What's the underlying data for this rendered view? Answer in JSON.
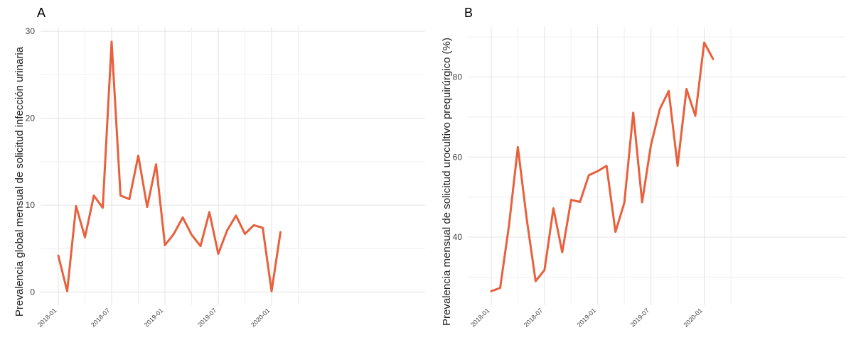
{
  "line_color": "#e8603c",
  "chart_data": [
    {
      "panel_label": "A",
      "type": "line",
      "ylabel": "Prevalencia global mensual de solicitud infección urinaria",
      "x": [
        "2018-01",
        "2018-02",
        "2018-03",
        "2018-04",
        "2018-05",
        "2018-06",
        "2018-07",
        "2018-08",
        "2018-09",
        "2018-10",
        "2018-11",
        "2018-12",
        "2019-01",
        "2019-02",
        "2019-03",
        "2019-04",
        "2019-05",
        "2019-06",
        "2019-07",
        "2019-08",
        "2019-09",
        "2019-10",
        "2019-11",
        "2019-12",
        "2020-01",
        "2020-02"
      ],
      "x_tick_labels": [
        "2018-01",
        "2018-07",
        "2019-01",
        "2019-07",
        "2020-01"
      ],
      "y": [
        4.2,
        0.1,
        9.9,
        6.3,
        11.1,
        9.7,
        28.8,
        11.1,
        10.7,
        15.7,
        9.8,
        14.7,
        5.4,
        6.7,
        8.6,
        6.6,
        5.3,
        9.2,
        4.4,
        7.1,
        8.8,
        6.7,
        7.7,
        7.4,
        0.1,
        6.9
      ],
      "y_ticks": [
        0,
        10,
        20,
        30
      ],
      "ylim": [
        -1.5,
        30.5
      ],
      "grid": true
    },
    {
      "panel_label": "B",
      "type": "line",
      "ylabel": "Prevalencia mensual de solicitud urocultivo prequirúrgico (%)",
      "x": [
        "2018-01",
        "2018-02",
        "2018-03",
        "2018-04",
        "2018-05",
        "2018-06",
        "2018-07",
        "2018-08",
        "2018-09",
        "2018-10",
        "2018-11",
        "2018-12",
        "2019-01",
        "2019-02",
        "2019-03",
        "2019-04",
        "2019-05",
        "2019-06",
        "2019-07",
        "2019-08",
        "2019-09",
        "2019-10",
        "2019-11",
        "2019-12",
        "2020-01",
        "2020-02"
      ],
      "x_tick_labels": [
        "2018-01",
        "2018-07",
        "2019-01",
        "2019-07",
        "2020-01"
      ],
      "y": [
        26.5,
        27.3,
        43.0,
        62.5,
        44.5,
        29.0,
        31.8,
        47.2,
        36.2,
        49.3,
        48.8,
        55.5,
        56.5,
        57.8,
        41.3,
        48.6,
        71.1,
        48.7,
        63.0,
        72.0,
        76.5,
        57.8,
        77.0,
        70.3,
        88.6,
        84.5
      ],
      "y_ticks": [
        40,
        60,
        80
      ],
      "ylim": [
        23,
        92.5
      ],
      "grid": true
    }
  ]
}
